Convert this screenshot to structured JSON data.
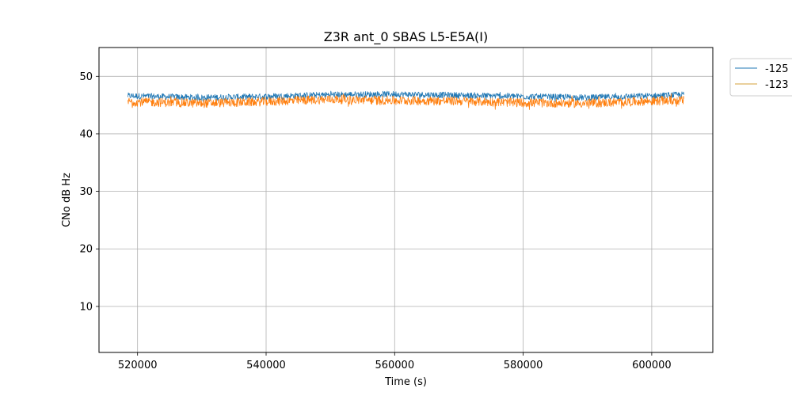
{
  "chart_data": {
    "type": "line",
    "title": "Z3R ant_0 SBAS L5-E5A(I)",
    "xlabel": "Time (s)",
    "ylabel": "CNo dB Hz",
    "xlim": [
      514000,
      609500
    ],
    "ylim": [
      2,
      55
    ],
    "xticks": [
      520000,
      540000,
      560000,
      580000,
      600000
    ],
    "xtick_labels": [
      "520000",
      "540000",
      "560000",
      "580000",
      "600000"
    ],
    "yticks": [
      10,
      20,
      30,
      40,
      50
    ],
    "ytick_labels": [
      "10",
      "20",
      "30",
      "40",
      "50"
    ],
    "grid": true,
    "legend_position": "outside-top-right",
    "x_start": 518500,
    "x_end": 605000,
    "series": [
      {
        "name": "-125",
        "color": "#1f77b4",
        "x": [
          518500,
          530000,
          540000,
          550000,
          560000,
          570000,
          580000,
          590000,
          600000,
          605000
        ],
        "y": [
          46.6,
          46.3,
          46.5,
          46.8,
          46.9,
          46.7,
          46.5,
          46.3,
          46.6,
          46.8
        ],
        "spread": 0.9
      },
      {
        "name": "-123",
        "color": "#ff7f0e",
        "legend_line_color": "#d4a13a",
        "x": [
          518500,
          530000,
          540000,
          550000,
          560000,
          570000,
          580000,
          590000,
          600000,
          605000
        ],
        "y": [
          45.6,
          45.3,
          45.6,
          46.0,
          45.8,
          45.7,
          45.4,
          45.3,
          45.7,
          45.8
        ],
        "spread": 1.3
      }
    ]
  }
}
